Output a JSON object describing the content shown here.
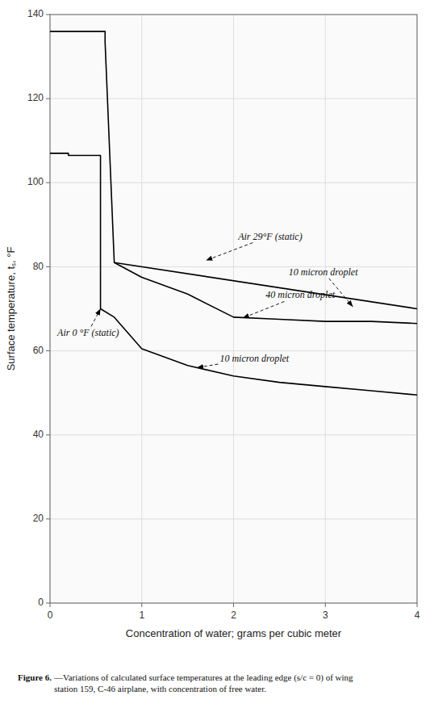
{
  "chart_data": {
    "type": "line",
    "xlabel": "Concentration of water; grams per cubic meter",
    "ylabel": "Surface temperature, tₛ, °F",
    "xlim": [
      0,
      4
    ],
    "ylim": [
      0,
      140
    ],
    "xticks": [
      0,
      1,
      2,
      3,
      4
    ],
    "yticks": [
      0,
      20,
      40,
      60,
      80,
      100,
      120,
      140
    ],
    "grid": true,
    "series": [
      {
        "color": "#000000",
        "x": [
          0.0,
          0.6,
          0.6,
          0.7,
          4.0
        ],
        "values": [
          136.0,
          136.0,
          133.5,
          81.0,
          70.0
        ]
      },
      {
        "color": "#000000",
        "x": [
          0.7,
          1.0,
          1.5,
          2.0,
          2.5,
          3.0,
          3.5,
          4.0
        ],
        "values": [
          81.0,
          77.5,
          73.5,
          68.0,
          67.5,
          67.0,
          67.0,
          66.5
        ]
      },
      {
        "color": "#000000",
        "x": [
          0.0,
          0.2,
          0.2,
          0.55,
          0.55,
          0.7,
          1.0,
          1.5,
          2.0,
          2.5,
          3.0,
          3.5,
          4.0
        ],
        "values": [
          107.0,
          107.0,
          106.5,
          106.5,
          70.0,
          68.0,
          60.5,
          56.5,
          54.0,
          52.5,
          51.5,
          50.5,
          49.5
        ]
      }
    ],
    "annotations": [
      {
        "text": "Air 29°F (static)",
        "xy": [
          1.7,
          81.5
        ],
        "xytext": [
          2.05,
          86.5
        ]
      },
      {
        "text": "10 micron droplet",
        "xy": [
          3.3,
          70.5
        ],
        "xytext": [
          2.6,
          78.0
        ]
      },
      {
        "text": "40 micron droplet",
        "xy": [
          2.1,
          67.8
        ],
        "xytext": [
          2.35,
          72.5
        ]
      },
      {
        "text": "Air 0 °F (static)",
        "xy": [
          0.55,
          70.0
        ],
        "xytext": [
          0.08,
          63.5
        ]
      },
      {
        "text": "10 micron droplet",
        "xy": [
          1.6,
          56.0
        ],
        "xytext": [
          1.85,
          57.5
        ]
      }
    ],
    "caption": {
      "label": "Figure 6.",
      "text": "—Variations of calculated surface temperatures at the leading edge (s/c = 0) of wing\nstation 159, C‑46 airplane, with concentration of free water."
    }
  }
}
